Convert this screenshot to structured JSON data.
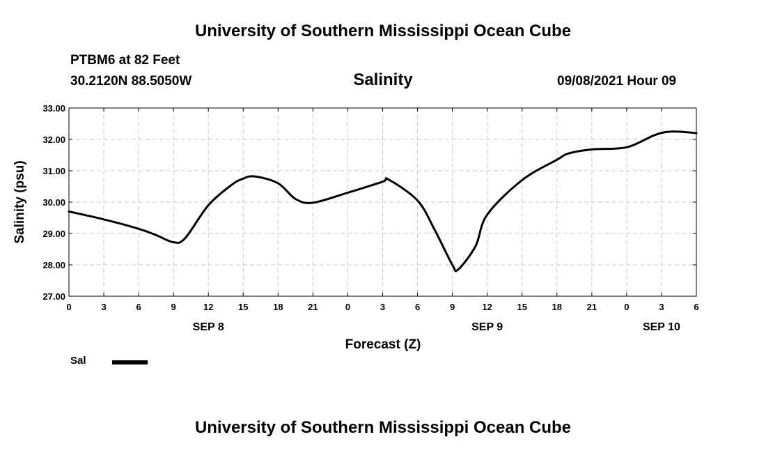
{
  "header": {
    "title": "University of Southern Mississippi Ocean Cube",
    "station": "PTBM6 at 82 Feet",
    "coords": "30.2120N  88.5050W",
    "subtitle": "Salinity",
    "datetime": "09/08/2021 Hour 09"
  },
  "footer": {
    "title": "University of Southern Mississippi Ocean Cube"
  },
  "legend": {
    "label": "Sal",
    "color": "#000000"
  },
  "chart_data": {
    "type": "line",
    "title": "Salinity",
    "xlabel": "Forecast (Z)",
    "ylabel": "Salinity (psu)",
    "xlim": [
      0,
      54
    ],
    "ylim": [
      27.0,
      33.0
    ],
    "x_ticks": [
      0,
      3,
      6,
      9,
      12,
      15,
      18,
      21,
      24,
      27,
      30,
      33,
      36,
      39,
      42,
      45,
      48,
      51,
      54
    ],
    "x_tick_labels": [
      "0",
      "3",
      "6",
      "9",
      "12",
      "15",
      "18",
      "21",
      "0",
      "3",
      "6",
      "9",
      "12",
      "15",
      "18",
      "21",
      "0",
      "3",
      "6"
    ],
    "y_ticks": [
      27.0,
      28.0,
      29.0,
      30.0,
      31.0,
      32.0,
      33.0
    ],
    "y_tick_labels": [
      "27.00",
      "28.00",
      "29.00",
      "30.00",
      "31.00",
      "32.00",
      "33.00"
    ],
    "day_labels": [
      {
        "label": "SEP 8",
        "x": 12
      },
      {
        "label": "SEP 9",
        "x": 36
      },
      {
        "label": "SEP 10",
        "x": 51
      }
    ],
    "grid": true,
    "series": [
      {
        "name": "Sal",
        "color": "#000000",
        "x": [
          0,
          3,
          6,
          7.5,
          9,
          10,
          12,
          14,
          15,
          16,
          18,
          19.5,
          21,
          24,
          27,
          27.5,
          30,
          31.5,
          33,
          33.5,
          35,
          36,
          39,
          42,
          43,
          45,
          48,
          50.5,
          52,
          54
        ],
        "y": [
          29.7,
          29.45,
          29.15,
          28.95,
          28.72,
          28.85,
          29.9,
          30.55,
          30.75,
          30.82,
          30.6,
          30.1,
          29.98,
          30.3,
          30.65,
          30.72,
          30.05,
          29.1,
          28.0,
          27.85,
          28.6,
          29.6,
          30.7,
          31.35,
          31.55,
          31.68,
          31.75,
          32.15,
          32.25,
          32.2
        ]
      }
    ]
  }
}
